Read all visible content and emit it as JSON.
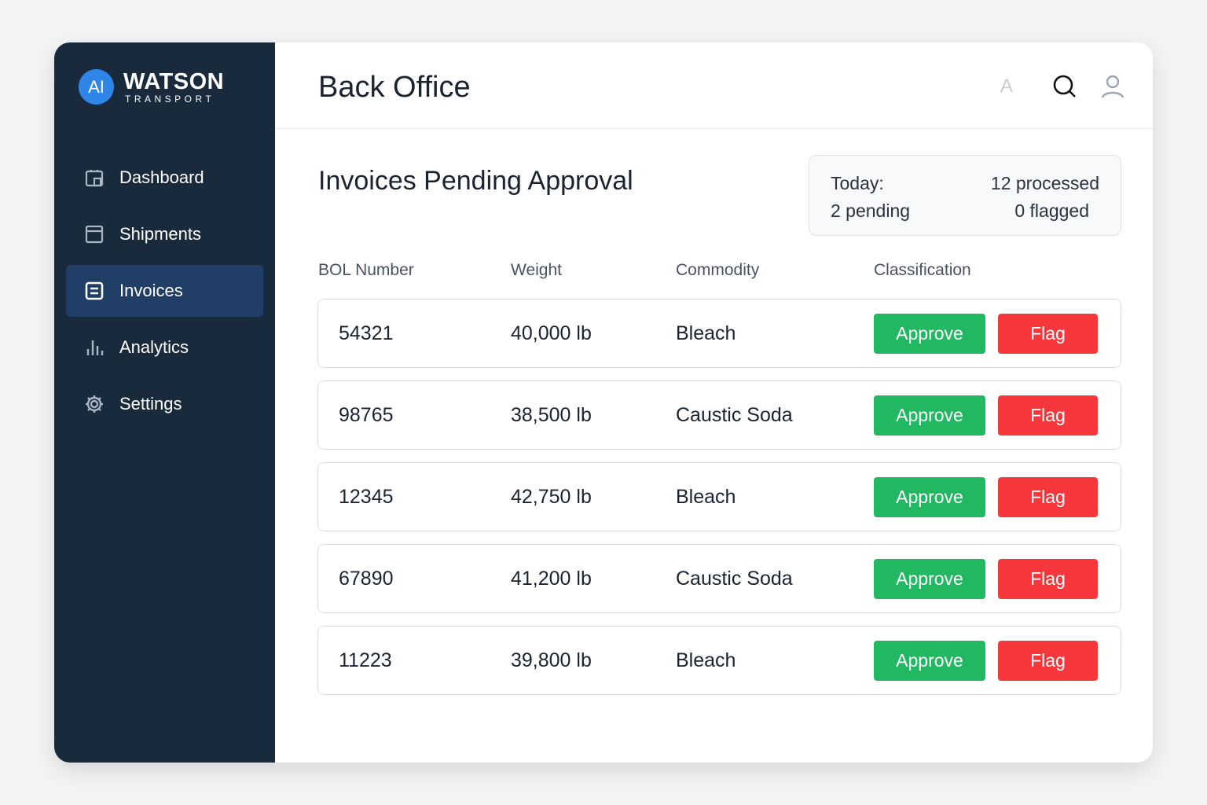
{
  "brand": {
    "badge": "AI",
    "name": "WATSON",
    "sub": "TRANSPORT",
    "badge_color": "#2f86e8"
  },
  "sidebar": {
    "items": [
      {
        "label": "Dashboard",
        "icon": "dashboard-icon"
      },
      {
        "label": "Shipments",
        "icon": "window-icon"
      },
      {
        "label": "Invoices",
        "icon": "invoice-icon",
        "active": true
      },
      {
        "label": "Analytics",
        "icon": "bar-chart-icon"
      },
      {
        "label": "Settings",
        "icon": "gear-icon"
      }
    ]
  },
  "header": {
    "title": "Back Office",
    "font_label": "A"
  },
  "main": {
    "title": "Invoices Pending Approval",
    "summary": {
      "today": "Today:",
      "processed": "12 processed",
      "pending": "2 pending",
      "flagged": "0 flagged"
    },
    "columns": [
      "BOL Number",
      "Weight",
      "Commodity",
      "Classification"
    ],
    "rows": [
      {
        "bol": "54321",
        "weight": "40,000 lb",
        "commodity": "Bleach"
      },
      {
        "bol": "98765",
        "weight": "38,500 lb",
        "commodity": "Caustic Soda"
      },
      {
        "bol": "12345",
        "weight": "42,750 lb",
        "commodity": "Bleach"
      },
      {
        "bol": "67890",
        "weight": "41,200 lb",
        "commodity": "Caustic Soda"
      },
      {
        "bol": "11223",
        "weight": "39,800 lb",
        "commodity": "Bleach"
      }
    ],
    "approve_label": "Approve",
    "flag_label": "Flag",
    "colors": {
      "approve": "#22b861",
      "flag": "#f6383c",
      "sidebar": "#1a2a3d",
      "active": "#213f66"
    }
  }
}
